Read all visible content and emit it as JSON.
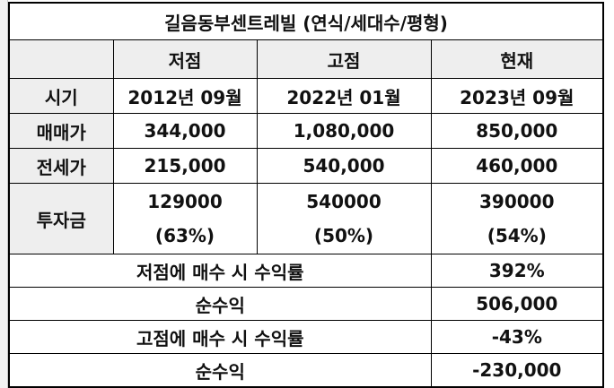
{
  "title": "길음동부센트레빌 (연식/세대수/평형)",
  "columns": {
    "low": "저점",
    "high": "고점",
    "current": "현재"
  },
  "rows": {
    "period": {
      "label": "시기",
      "low": "2012년 09월",
      "high": "2022년 01월",
      "current": "2023년 09월"
    },
    "sale_price": {
      "label": "매매가",
      "low": "344,000",
      "high": "1,080,000",
      "current": "850,000"
    },
    "jeonse_price": {
      "label": "전세가",
      "low": "215,000",
      "high": "540,000",
      "current": "460,000"
    },
    "investment": {
      "label": "투자금",
      "low": "129000",
      "low_pct": "(63%)",
      "high": "540000",
      "high_pct": "(50%)",
      "current": "390000",
      "current_pct": "(54%)"
    }
  },
  "summary": {
    "low_buy_return_label": "저점에 매수 시 수익률",
    "low_buy_return_value": "392%",
    "low_net_profit_label": "순수익",
    "low_net_profit_value": "506,000",
    "high_buy_return_label": "고점에 매수 시 수익률",
    "high_buy_return_value": "-43%",
    "high_net_profit_label": "순수익",
    "high_net_profit_value": "-230,000"
  },
  "colors": {
    "accent_blue": "#1f6fc0",
    "header_gray": "#eeeeee"
  }
}
